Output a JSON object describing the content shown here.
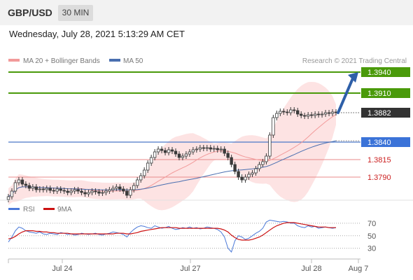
{
  "header": {
    "symbol": "GBP/USD",
    "timeframe": "30 MIN",
    "datetime": "Wednesday, July 28, 2021 5:13:29 AM CET"
  },
  "legend": {
    "ma20_label": "MA 20 + Bollinger Bands",
    "ma50_label": "MA 50",
    "copyright": "Research © 2021 Trading Central"
  },
  "colors": {
    "resistance": "#4a9a0a",
    "support": "#4a78c8",
    "support_text": "#cc2222",
    "bollinger_fill": "#fde0e0",
    "ma20": "#f29a9a",
    "ma50": "#4a6fb0",
    "candle": "#3a3a3a",
    "forecast_arrow": "#2e5fa8",
    "rsi": "#4a78d8",
    "rsi_ma": "#cc1111"
  },
  "chart_data": [
    {
      "type": "candlestick",
      "x_ticks": [
        "Jul 24",
        "Jul 27",
        "Jul 28",
        "Aug 7"
      ],
      "y_range": [
        1.3755,
        1.3955
      ],
      "levels": [
        {
          "label": "1.3940",
          "value": 1.394,
          "kind": "resistance"
        },
        {
          "label": "1.3910",
          "value": 1.391,
          "kind": "resistance"
        },
        {
          "label": "1.3882",
          "value": 1.3882,
          "kind": "last"
        },
        {
          "label": "1.3840",
          "value": 1.384,
          "kind": "pivot"
        },
        {
          "label": "1.3815",
          "value": 1.3815,
          "kind": "support"
        },
        {
          "label": "1.3790",
          "value": 1.379,
          "kind": "support"
        }
      ],
      "forecast_target": 1.394,
      "series_close": [
        1.3762,
        1.377,
        1.3782,
        1.3786,
        1.378,
        1.3778,
        1.3774,
        1.3776,
        1.3772,
        1.3773,
        1.3772,
        1.3774,
        1.3771,
        1.377,
        1.3773,
        1.3771,
        1.377,
        1.3768,
        1.377,
        1.3772,
        1.377,
        1.3768,
        1.3766,
        1.3768,
        1.377,
        1.3769,
        1.3767,
        1.3768,
        1.377,
        1.3772,
        1.3774,
        1.3776,
        1.3773,
        1.377,
        1.3764,
        1.3772,
        1.3778,
        1.3786,
        1.3792,
        1.38,
        1.381,
        1.3818,
        1.3826,
        1.383,
        1.3828,
        1.3825,
        1.3829,
        1.3827,
        1.3823,
        1.3818,
        1.382,
        1.3823,
        1.3826,
        1.3829,
        1.383,
        1.3832,
        1.3831,
        1.3832,
        1.383,
        1.3831,
        1.3829,
        1.383,
        1.3824,
        1.3818,
        1.3808,
        1.3798,
        1.379,
        1.3786,
        1.379,
        1.3794,
        1.3796,
        1.3802,
        1.3808,
        1.3812,
        1.382,
        1.385,
        1.3875,
        1.3881,
        1.3884,
        1.3883,
        1.3882,
        1.3886,
        1.3885,
        1.388,
        1.3878,
        1.3877,
        1.3879,
        1.3878,
        1.388,
        1.3879,
        1.388,
        1.3882,
        1.3881,
        1.3883,
        1.3882
      ]
    },
    {
      "type": "line",
      "title": "RSI",
      "series": [
        {
          "name": "RSI"
        },
        {
          "name": "9MA"
        }
      ],
      "y_ticks": [
        70,
        50,
        30
      ],
      "y_range": [
        15,
        80
      ],
      "rsi": [
        40,
        48,
        58,
        64,
        62,
        58,
        56,
        55,
        54,
        56,
        53,
        52,
        54,
        53,
        52,
        55,
        54,
        52,
        53,
        51,
        52,
        54,
        53,
        52,
        53,
        54,
        52,
        51,
        53,
        54,
        56,
        55,
        54,
        52,
        48,
        55,
        60,
        64,
        66,
        65,
        63,
        62,
        66,
        64,
        62,
        63,
        65,
        62,
        60,
        61,
        63,
        62,
        64,
        62,
        63,
        61,
        62,
        64,
        63,
        62,
        60,
        56,
        48,
        30,
        24,
        42,
        50,
        48,
        44,
        46,
        50,
        54,
        57,
        62,
        72,
        75,
        74,
        73,
        72,
        73,
        72,
        70,
        70,
        66,
        64,
        63,
        66,
        64,
        65,
        62,
        63,
        64,
        63,
        62,
        63
      ],
      "ma": [
        45,
        46,
        49,
        53,
        56,
        58,
        58,
        58,
        57,
        57,
        56,
        56,
        55,
        55,
        54,
        54,
        54,
        54,
        53,
        53,
        53,
        53,
        53,
        53,
        53,
        53,
        53,
        53,
        53,
        53,
        53,
        54,
        54,
        54,
        53,
        53,
        54,
        55,
        57,
        58,
        59,
        60,
        61,
        62,
        63,
        63,
        63,
        63,
        63,
        62,
        62,
        62,
        62,
        62,
        62,
        62,
        62,
        62,
        62,
        62,
        62,
        61,
        59,
        56,
        51,
        47,
        44,
        43,
        43,
        43,
        44,
        46,
        48,
        51,
        55,
        59,
        63,
        66,
        68,
        70,
        71,
        71,
        71,
        70,
        69,
        68,
        67,
        66,
        65,
        64,
        64,
        64,
        63,
        63,
        63
      ]
    }
  ]
}
